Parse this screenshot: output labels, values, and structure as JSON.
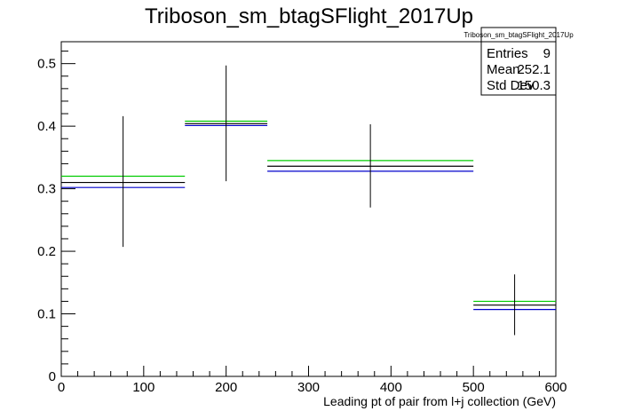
{
  "chart_data": {
    "type": "scatter",
    "title": "Triboson_sm_btagSFlight_2017Up",
    "xlabel": "Leading pt of pair from l+j collection (GeV)",
    "ylabel": "",
    "xlim": [
      0,
      600
    ],
    "ylim": [
      0,
      0.535
    ],
    "x_ticks": [
      0,
      100,
      200,
      300,
      400,
      500,
      600
    ],
    "y_ticks": [
      0,
      0.1,
      0.2,
      0.3,
      0.4,
      0.5
    ],
    "grid": false,
    "legend": "none",
    "stats_box": {
      "title": "Triboson_sm_btagSFlight_2017Up",
      "rows": [
        {
          "label": "Entries",
          "value": "9"
        },
        {
          "label": "Mean",
          "value": "252.1"
        },
        {
          "label": "Std Dev",
          "value": "150.3"
        }
      ]
    },
    "bins": [
      {
        "xlow": 0,
        "xhigh": 150,
        "center": 75,
        "value": 0.31,
        "err_low": 0.207,
        "err_high": 0.416,
        "up": 0.32,
        "down": 0.302
      },
      {
        "xlow": 150,
        "xhigh": 250,
        "center": 200,
        "value": 0.404,
        "err_low": 0.312,
        "err_high": 0.497,
        "up": 0.408,
        "down": 0.401
      },
      {
        "xlow": 250,
        "xhigh": 500,
        "center": 375,
        "value": 0.336,
        "err_low": 0.27,
        "err_high": 0.403,
        "up": 0.345,
        "down": 0.328
      },
      {
        "xlow": 500,
        "xhigh": 600,
        "center": 550,
        "value": 0.114,
        "err_low": 0.066,
        "err_high": 0.163,
        "up": 0.12,
        "down": 0.107
      }
    ],
    "colors": {
      "nominal": "#000000",
      "up": "#00cc00",
      "down": "#0000cc"
    }
  }
}
